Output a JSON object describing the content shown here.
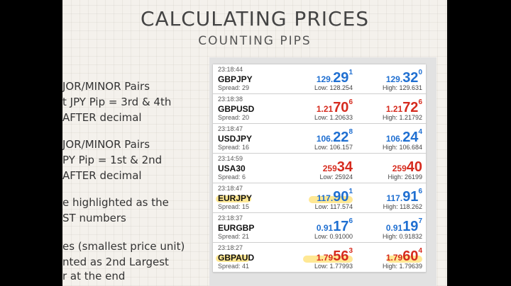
{
  "title": "CALCULATING PRICES",
  "subtitle": "COUNTING PIPS",
  "bullets": [
    "JOR/MINOR Pairs",
    "t JPY Pip = 3rd & 4th",
    "AFTER decimal",
    "JOR/MINOR Pairs",
    "PY Pip = 1st & 2nd",
    "AFTER decimal",
    "e highlighted as the",
    "ST numbers",
    "es (smallest price unit)",
    "nted as 2nd Largest",
    "r at the end"
  ],
  "colors": {
    "up": "#1f6fd1",
    "down": "#d62b1e",
    "highlight": "#ffd63c"
  },
  "quotes": [
    {
      "time": "23:18:44",
      "symbol": "GBPJPY",
      "spread": "Spread: 29",
      "dir": "up",
      "bid": {
        "a": "129.",
        "b": "29",
        "c": "1"
      },
      "ask": {
        "a": "129.",
        "b": "32",
        "c": "0"
      },
      "low": "Low: 128.254",
      "high": "High: 129.631"
    },
    {
      "time": "23:18:38",
      "symbol": "GBPUSD",
      "spread": "Spread: 20",
      "dir": "down",
      "bid": {
        "a": "1.21",
        "b": "70",
        "c": "6"
      },
      "ask": {
        "a": "1.21",
        "b": "72",
        "c": "6"
      },
      "low": "Low: 1.20633",
      "high": "High: 1.21792"
    },
    {
      "time": "23:18:47",
      "symbol": "USDJPY",
      "spread": "Spread: 16",
      "dir": "up",
      "bid": {
        "a": "106.",
        "b": "22",
        "c": "8"
      },
      "ask": {
        "a": "106.",
        "b": "24",
        "c": "4"
      },
      "low": "Low: 106.157",
      "high": "High: 106.684"
    },
    {
      "time": "23:14:59",
      "symbol": "USA30",
      "spread": "Spread: 6",
      "dir": "down",
      "bid": {
        "a": "259",
        "b": "34",
        "c": ""
      },
      "ask": {
        "a": "259",
        "b": "40",
        "c": ""
      },
      "low": "Low: 25924",
      "high": "High: 26199"
    },
    {
      "time": "23:18:47",
      "symbol": "EURJPY",
      "spread": "Spread: 15",
      "dir": "up",
      "bid": {
        "a": "117.",
        "b": "90",
        "c": "1"
      },
      "ask": {
        "a": "117.",
        "b": "91",
        "c": "6"
      },
      "low": "Low: 117.574",
      "high": "High: 118.262"
    },
    {
      "time": "23:18:37",
      "symbol": "EURGBP",
      "spread": "Spread: 21",
      "dir": "up",
      "bid": {
        "a": "0.91",
        "b": "17",
        "c": "6"
      },
      "ask": {
        "a": "0.91",
        "b": "19",
        "c": "7"
      },
      "low": "Low: 0.91000",
      "high": "High: 0.91832"
    },
    {
      "time": "23:18:27",
      "symbol": "GBPAUD",
      "spread": "Spread: 41",
      "dir": "down",
      "bid": {
        "a": "1.79",
        "b": "56",
        "c": "3"
      },
      "ask": {
        "a": "1.79",
        "b": "60",
        "c": "4"
      },
      "low": "Low: 1.77993",
      "high": "High: 1.79639"
    }
  ]
}
